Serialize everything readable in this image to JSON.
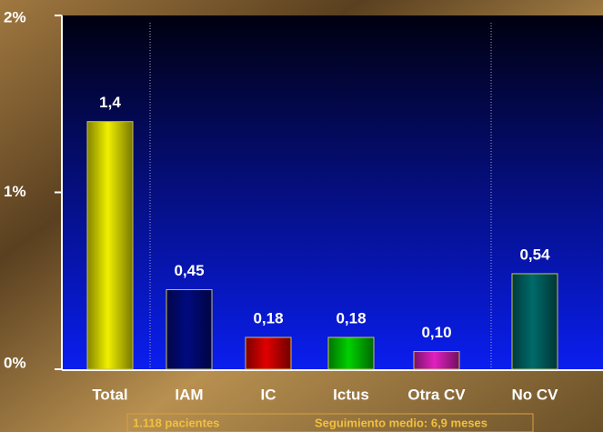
{
  "chart_data": {
    "type": "bar",
    "categories": [
      "Total",
      "IAM",
      "IC",
      "Ictus",
      "Otra CV",
      "No CV"
    ],
    "values": [
      1.4,
      0.45,
      0.18,
      0.18,
      0.1,
      0.54
    ],
    "value_labels": [
      "1,4",
      "0,45",
      "0,18",
      "0,18",
      "0,10",
      "0,54"
    ],
    "colors": [
      "#f0f000",
      "#000a80",
      "#e00000",
      "#00d000",
      "#e020c0",
      "#006a6a"
    ],
    "ylim": [
      0,
      2
    ],
    "yticks": [
      {
        "value": 0,
        "label": "0%"
      },
      {
        "value": 1,
        "label": "1%"
      },
      {
        "value": 2,
        "label": "2%"
      }
    ],
    "notes": [
      "1.118 pacientes",
      "Seguimiento medio: 6,9 meses"
    ]
  }
}
